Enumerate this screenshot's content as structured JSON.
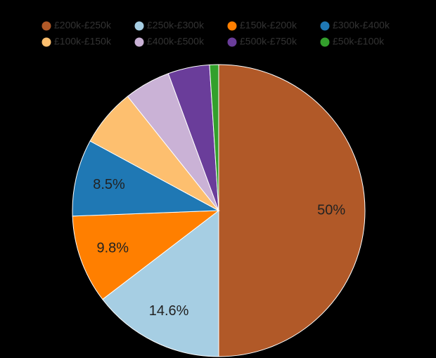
{
  "chart_data": {
    "type": "pie",
    "categories": [
      "£200k-£250k",
      "£250k-£300k",
      "£150k-£200k",
      "£300k-£400k",
      "£100k-£150k",
      "£400k-£500k",
      "£500k-£750k",
      "£50k-£100k"
    ],
    "values": [
      50,
      14.6,
      9.8,
      8.5,
      6.4,
      5.1,
      4.6,
      1.0
    ],
    "value_labels": [
      "50%",
      "14.6%",
      "9.8%",
      "8.5%",
      null,
      null,
      null,
      null
    ],
    "colors": [
      "#b15928",
      "#a6cee3",
      "#ff7f00",
      "#1f78b4",
      "#fdbf6f",
      "#cab2d6",
      "#6a3d9a",
      "#33a02c"
    ]
  }
}
